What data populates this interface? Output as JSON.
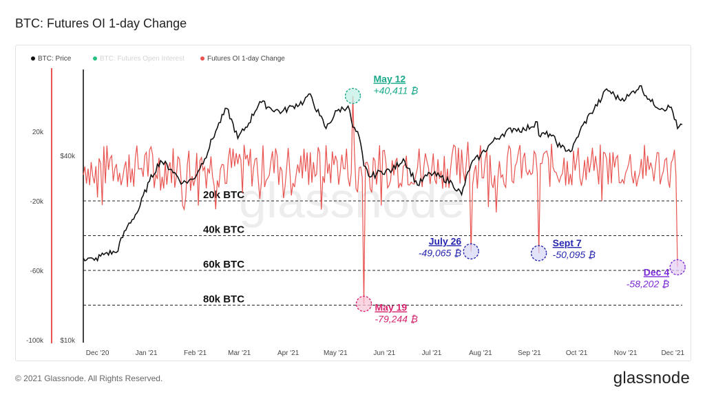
{
  "page": {
    "title": "BTC: Futures OI 1-day Change",
    "footer": "© 2021 Glassnode. All Rights Reserved.",
    "brand": "glassnode",
    "watermark": "glassnode"
  },
  "chart_data": {
    "type": "line",
    "title": "BTC: Futures OI 1-day Change",
    "legend": [
      {
        "name": "BTC: Price",
        "color": "#111111",
        "active": true
      },
      {
        "name": "BTC: Futures Open Interest",
        "color": "#26c281",
        "active": false
      },
      {
        "name": "Futures OI 1-day Change",
        "color": "#e8524f",
        "active": true
      }
    ],
    "x_ticks": [
      "Dec '20",
      "Jan '21",
      "Feb '21",
      "Mar '21",
      "Apr '21",
      "May '21",
      "Jun '21",
      "Jul '21",
      "Aug '21",
      "Sep '21",
      "Oct '21",
      "Nov '21",
      "Dec '21"
    ],
    "y_left_ticks": [
      "20k",
      "-20k",
      "-60k",
      "-100k"
    ],
    "y_left_values": [
      20000,
      -20000,
      -60000,
      -100000
    ],
    "y_price_ticks": [
      "$40k",
      "$10k"
    ],
    "y_price_values": [
      40000,
      10000
    ],
    "y_price_scale": "log",
    "threshold_lines": [
      {
        "label": "20k BTC",
        "value": -20000
      },
      {
        "label": "40k BTC",
        "value": -40000
      },
      {
        "label": "60k BTC",
        "value": -60000
      },
      {
        "label": "80k BTC",
        "value": -80000
      }
    ],
    "annotations": [
      {
        "date": "May 12",
        "value": "+40,411 ₿",
        "numeric": 40411,
        "color": "#1aa98a"
      },
      {
        "date": "May 19",
        "value": "-79,244 ₿",
        "numeric": -79244,
        "color": "#d6246e"
      },
      {
        "date": "July 26",
        "value": "-49,065 ₿",
        "numeric": -49065,
        "color": "#2626b0"
      },
      {
        "date": "Sept 7",
        "value": "-50,095 ₿",
        "numeric": -50095,
        "color": "#2626b0"
      },
      {
        "date": "Dec 4",
        "value": "-58,202 ₿",
        "numeric": -58202,
        "color": "#7a2ad6"
      }
    ],
    "series": [
      {
        "name": "BTC: Price",
        "unit": "USD",
        "points": [
          [
            "2020-11-22",
            18500
          ],
          [
            "2020-11-29",
            18200
          ],
          [
            "2020-12-06",
            19200
          ],
          [
            "2020-12-13",
            19300
          ],
          [
            "2020-12-20",
            23500
          ],
          [
            "2020-12-27",
            26500
          ],
          [
            "2021-01-03",
            33000
          ],
          [
            "2021-01-10",
            38500
          ],
          [
            "2021-01-17",
            36000
          ],
          [
            "2021-01-24",
            32500
          ],
          [
            "2021-01-31",
            33500
          ],
          [
            "2021-02-07",
            39000
          ],
          [
            "2021-02-14",
            48000
          ],
          [
            "2021-02-21",
            57000
          ],
          [
            "2021-02-28",
            45500
          ],
          [
            "2021-03-07",
            51000
          ],
          [
            "2021-03-14",
            60000
          ],
          [
            "2021-03-21",
            57000
          ],
          [
            "2021-03-28",
            55500
          ],
          [
            "2021-04-04",
            58000
          ],
          [
            "2021-04-11",
            60000
          ],
          [
            "2021-04-14",
            63500
          ],
          [
            "2021-04-21",
            54000
          ],
          [
            "2021-04-25",
            49000
          ],
          [
            "2021-05-02",
            56000
          ],
          [
            "2021-05-09",
            58000
          ],
          [
            "2021-05-12",
            49500
          ],
          [
            "2021-05-16",
            46000
          ],
          [
            "2021-05-19",
            37000
          ],
          [
            "2021-05-23",
            34000
          ],
          [
            "2021-05-30",
            35500
          ],
          [
            "2021-06-06",
            35800
          ],
          [
            "2021-06-13",
            39000
          ],
          [
            "2021-06-22",
            32000
          ],
          [
            "2021-06-30",
            35000
          ],
          [
            "2021-07-07",
            34000
          ],
          [
            "2021-07-14",
            32500
          ],
          [
            "2021-07-20",
            29800
          ],
          [
            "2021-07-26",
            37500
          ],
          [
            "2021-08-01",
            40000
          ],
          [
            "2021-08-08",
            44000
          ],
          [
            "2021-08-15",
            47000
          ],
          [
            "2021-08-22",
            49000
          ],
          [
            "2021-08-29",
            48500
          ],
          [
            "2021-09-06",
            51500
          ],
          [
            "2021-09-07",
            46500
          ],
          [
            "2021-09-14",
            47000
          ],
          [
            "2021-09-21",
            42500
          ],
          [
            "2021-09-28",
            41500
          ],
          [
            "2021-10-03",
            48000
          ],
          [
            "2021-10-10",
            55000
          ],
          [
            "2021-10-17",
            61500
          ],
          [
            "2021-10-20",
            66000
          ],
          [
            "2021-10-28",
            61000
          ],
          [
            "2021-11-03",
            62500
          ],
          [
            "2021-11-10",
            67500
          ],
          [
            "2021-11-17",
            60000
          ],
          [
            "2021-11-24",
            57000
          ],
          [
            "2021-11-30",
            57500
          ],
          [
            "2021-12-04",
            49000
          ],
          [
            "2021-12-07",
            50500
          ]
        ]
      },
      {
        "name": "Futures OI 1-day Change",
        "unit": "BTC",
        "points": [
          [
            "2020-11-22",
            -5000
          ],
          [
            "2020-12-01",
            -18000
          ],
          [
            "2020-12-10",
            6000
          ],
          [
            "2020-12-20",
            -12000
          ],
          [
            "2021-01-01",
            8000
          ],
          [
            "2021-01-10",
            -14000
          ],
          [
            "2021-01-20",
            -6000
          ],
          [
            "2021-01-26",
            -18000
          ],
          [
            "2021-02-05",
            5000
          ],
          [
            "2021-02-20",
            -10000
          ],
          [
            "2021-03-01",
            7000
          ],
          [
            "2021-03-15",
            -9000
          ],
          [
            "2021-03-25",
            6000
          ],
          [
            "2021-04-05",
            -12000
          ],
          [
            "2021-04-15",
            8000
          ],
          [
            "2021-04-22",
            -25000
          ],
          [
            "2021-05-01",
            6000
          ],
          [
            "2021-05-12",
            40411
          ],
          [
            "2021-05-15",
            -15000
          ],
          [
            "2021-05-19",
            -79244
          ],
          [
            "2021-05-25",
            5000
          ],
          [
            "2021-06-05",
            -8000
          ],
          [
            "2021-06-15",
            6000
          ],
          [
            "2021-06-25",
            -12000
          ],
          [
            "2021-07-05",
            4000
          ],
          [
            "2021-07-19",
            -10000
          ],
          [
            "2021-07-24",
            14000
          ],
          [
            "2021-07-26",
            -49065
          ],
          [
            "2021-08-01",
            12000
          ],
          [
            "2021-08-15",
            -5000
          ],
          [
            "2021-08-25",
            8000
          ],
          [
            "2021-09-03",
            -4000
          ],
          [
            "2021-09-07",
            -50095
          ],
          [
            "2021-09-10",
            7000
          ],
          [
            "2021-09-25",
            3000
          ],
          [
            "2021-10-05",
            -6000
          ],
          [
            "2021-10-18",
            8000
          ],
          [
            "2021-11-01",
            -4000
          ],
          [
            "2021-11-15",
            6000
          ],
          [
            "2021-11-25",
            -3000
          ],
          [
            "2021-12-01",
            4000
          ],
          [
            "2021-12-04",
            -58202
          ]
        ]
      }
    ]
  }
}
